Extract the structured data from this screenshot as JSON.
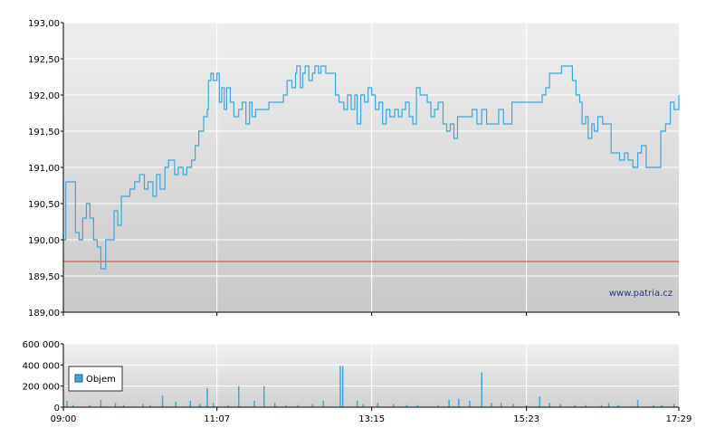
{
  "chart_data": [
    {
      "type": "line",
      "ylim": [
        189.0,
        193.0
      ],
      "yticks": [
        "193,00",
        "192,50",
        "192,00",
        "191,50",
        "191,00",
        "190,50",
        "190,00",
        "189,50",
        "189,00"
      ],
      "ytick_values": [
        193.0,
        192.5,
        192.0,
        191.5,
        191.0,
        190.5,
        190.0,
        189.5,
        189.0
      ],
      "reference_value": 189.7,
      "watermark": "www.patria.cz",
      "grid": true,
      "price_points": [
        [
          "09:00",
          190.0
        ],
        [
          "09:02",
          190.8
        ],
        [
          "09:08",
          190.8
        ],
        [
          "09:10",
          190.1
        ],
        [
          "09:13",
          190.0
        ],
        [
          "09:16",
          190.3
        ],
        [
          "09:19",
          190.5
        ],
        [
          "09:22",
          190.3
        ],
        [
          "09:25",
          190.0
        ],
        [
          "09:28",
          189.9
        ],
        [
          "09:31",
          189.6
        ],
        [
          "09:35",
          190.0
        ],
        [
          "09:40",
          190.0
        ],
        [
          "09:42",
          190.4
        ],
        [
          "09:45",
          190.2
        ],
        [
          "09:48",
          190.6
        ],
        [
          "09:52",
          190.6
        ],
        [
          "09:55",
          190.7
        ],
        [
          "09:59",
          190.8
        ],
        [
          "10:03",
          190.9
        ],
        [
          "10:07",
          190.7
        ],
        [
          "10:10",
          190.8
        ],
        [
          "10:14",
          190.6
        ],
        [
          "10:17",
          190.9
        ],
        [
          "10:20",
          190.7
        ],
        [
          "10:24",
          191.0
        ],
        [
          "10:27",
          191.1
        ],
        [
          "10:32",
          190.9
        ],
        [
          "10:35",
          191.0
        ],
        [
          "10:39",
          190.9
        ],
        [
          "10:42",
          191.0
        ],
        [
          "10:46",
          191.1
        ],
        [
          "10:49",
          191.3
        ],
        [
          "10:52",
          191.5
        ],
        [
          "10:56",
          191.7
        ],
        [
          "10:59",
          191.8
        ],
        [
          "11:00",
          192.2
        ],
        [
          "11:02",
          192.3
        ],
        [
          "11:04",
          192.2
        ],
        [
          "11:07",
          192.3
        ],
        [
          "11:09",
          191.9
        ],
        [
          "11:11",
          192.1
        ],
        [
          "11:13",
          191.8
        ],
        [
          "11:15",
          192.1
        ],
        [
          "11:18",
          191.9
        ],
        [
          "11:21",
          191.7
        ],
        [
          "11:25",
          191.8
        ],
        [
          "11:28",
          191.9
        ],
        [
          "11:31",
          191.6
        ],
        [
          "11:34",
          191.9
        ],
        [
          "11:36",
          191.7
        ],
        [
          "11:39",
          191.8
        ],
        [
          "11:42",
          191.8
        ],
        [
          "11:46",
          191.8
        ],
        [
          "11:50",
          191.9
        ],
        [
          "11:55",
          191.9
        ],
        [
          "11:59",
          191.9
        ],
        [
          "12:02",
          192.0
        ],
        [
          "12:05",
          192.2
        ],
        [
          "12:07",
          192.2
        ],
        [
          "12:09",
          192.1
        ],
        [
          "12:12",
          192.3
        ],
        [
          "12:13",
          192.4
        ],
        [
          "12:16",
          192.1
        ],
        [
          "12:18",
          192.3
        ],
        [
          "12:20",
          192.4
        ],
        [
          "12:23",
          192.2
        ],
        [
          "12:26",
          192.3
        ],
        [
          "12:28",
          192.4
        ],
        [
          "12:31",
          192.3
        ],
        [
          "12:33",
          192.4
        ],
        [
          "12:37",
          192.3
        ],
        [
          "12:42",
          192.3
        ],
        [
          "12:45",
          192.0
        ],
        [
          "12:48",
          191.9
        ],
        [
          "12:52",
          191.8
        ],
        [
          "12:55",
          192.0
        ],
        [
          "12:58",
          191.8
        ],
        [
          "13:01",
          192.0
        ],
        [
          "13:03",
          191.6
        ],
        [
          "13:06",
          192.0
        ],
        [
          "13:09",
          191.9
        ],
        [
          "13:12",
          192.1
        ],
        [
          "13:15",
          192.0
        ],
        [
          "13:18",
          191.8
        ],
        [
          "13:21",
          191.9
        ],
        [
          "13:24",
          191.6
        ],
        [
          "13:27",
          191.8
        ],
        [
          "13:30",
          191.7
        ],
        [
          "13:34",
          191.8
        ],
        [
          "13:37",
          191.7
        ],
        [
          "13:40",
          191.8
        ],
        [
          "13:43",
          191.9
        ],
        [
          "13:46",
          191.7
        ],
        [
          "13:49",
          191.6
        ],
        [
          "13:52",
          192.1
        ],
        [
          "13:55",
          192.0
        ],
        [
          "13:58",
          192.0
        ],
        [
          "14:01",
          191.9
        ],
        [
          "14:04",
          191.7
        ],
        [
          "14:07",
          191.8
        ],
        [
          "14:10",
          191.9
        ],
        [
          "14:14",
          191.6
        ],
        [
          "14:17",
          191.5
        ],
        [
          "14:20",
          191.6
        ],
        [
          "14:23",
          191.4
        ],
        [
          "14:26",
          191.7
        ],
        [
          "14:30",
          191.7
        ],
        [
          "14:35",
          191.7
        ],
        [
          "14:38",
          191.8
        ],
        [
          "14:42",
          191.6
        ],
        [
          "14:46",
          191.8
        ],
        [
          "14:50",
          191.6
        ],
        [
          "14:55",
          191.6
        ],
        [
          "15:00",
          191.8
        ],
        [
          "15:04",
          191.6
        ],
        [
          "15:08",
          191.6
        ],
        [
          "15:11",
          191.9
        ],
        [
          "15:14",
          191.9
        ],
        [
          "15:17",
          191.9
        ],
        [
          "15:20",
          191.9
        ],
        [
          "15:23",
          191.9
        ],
        [
          "15:26",
          191.9
        ],
        [
          "15:29",
          191.9
        ],
        [
          "15:33",
          191.9
        ],
        [
          "15:36",
          192.0
        ],
        [
          "15:39",
          192.1
        ],
        [
          "15:42",
          192.3
        ],
        [
          "15:46",
          192.3
        ],
        [
          "15:49",
          192.3
        ],
        [
          "15:52",
          192.4
        ],
        [
          "15:55",
          192.4
        ],
        [
          "15:58",
          192.4
        ],
        [
          "16:01",
          192.2
        ],
        [
          "16:04",
          192.0
        ],
        [
          "16:07",
          191.9
        ],
        [
          "16:09",
          191.6
        ],
        [
          "16:12",
          191.7
        ],
        [
          "16:14",
          191.4
        ],
        [
          "16:17",
          191.6
        ],
        [
          "16:19",
          191.5
        ],
        [
          "16:22",
          191.7
        ],
        [
          "16:26",
          191.6
        ],
        [
          "16:30",
          191.6
        ],
        [
          "16:33",
          191.2
        ],
        [
          "16:37",
          191.2
        ],
        [
          "16:40",
          191.1
        ],
        [
          "16:44",
          191.2
        ],
        [
          "16:47",
          191.1
        ],
        [
          "16:51",
          191.0
        ],
        [
          "16:55",
          191.2
        ],
        [
          "16:58",
          191.3
        ],
        [
          "17:02",
          191.0
        ],
        [
          "17:05",
          191.0
        ],
        [
          "17:10",
          191.0
        ],
        [
          "17:14",
          191.5
        ],
        [
          "17:18",
          191.6
        ],
        [
          "17:22",
          191.9
        ],
        [
          "17:25",
          191.8
        ],
        [
          "17:29",
          192.0
        ]
      ]
    },
    {
      "type": "bar",
      "ylim": [
        0,
        600000
      ],
      "yticks": [
        "600 000",
        "400 000",
        "200 000",
        "0"
      ],
      "ytick_values": [
        600000,
        400000,
        200000,
        0
      ],
      "xticks": [
        "09:00",
        "11:07",
        "13:15",
        "15:23",
        "17:29"
      ],
      "legend_label": "Objem",
      "legend_position": "top-left",
      "grid": true,
      "volume_bars": [
        [
          "09:03",
          60000
        ],
        [
          "09:08",
          20000
        ],
        [
          "09:22",
          20000
        ],
        [
          "09:31",
          70000
        ],
        [
          "09:43",
          40000
        ],
        [
          "09:50",
          20000
        ],
        [
          "10:06",
          30000
        ],
        [
          "10:12",
          20000
        ],
        [
          "10:22",
          110000
        ],
        [
          "10:33",
          50000
        ],
        [
          "10:45",
          60000
        ],
        [
          "10:53",
          30000
        ],
        [
          "10:59",
          180000
        ],
        [
          "11:04",
          40000
        ],
        [
          "11:16",
          20000
        ],
        [
          "11:25",
          200000
        ],
        [
          "11:38",
          60000
        ],
        [
          "11:46",
          200000
        ],
        [
          "11:55",
          40000
        ],
        [
          "12:04",
          20000
        ],
        [
          "12:14",
          20000
        ],
        [
          "12:26",
          30000
        ],
        [
          "12:35",
          60000
        ],
        [
          "12:49",
          390000
        ],
        [
          "12:51",
          390000
        ],
        [
          "13:03",
          60000
        ],
        [
          "13:08",
          30000
        ],
        [
          "13:20",
          40000
        ],
        [
          "13:33",
          30000
        ],
        [
          "13:44",
          20000
        ],
        [
          "13:53",
          20000
        ],
        [
          "14:10",
          20000
        ],
        [
          "14:19",
          70000
        ],
        [
          "14:27",
          80000
        ],
        [
          "14:36",
          60000
        ],
        [
          "14:46",
          330000
        ],
        [
          "14:54",
          40000
        ],
        [
          "15:02",
          40000
        ],
        [
          "15:12",
          30000
        ],
        [
          "15:23",
          20000
        ],
        [
          "15:34",
          100000
        ],
        [
          "15:42",
          40000
        ],
        [
          "15:51",
          30000
        ],
        [
          "16:03",
          20000
        ],
        [
          "16:12",
          20000
        ],
        [
          "16:25",
          20000
        ],
        [
          "16:31",
          40000
        ],
        [
          "16:39",
          20000
        ],
        [
          "16:55",
          70000
        ],
        [
          "17:08",
          20000
        ],
        [
          "17:15",
          20000
        ],
        [
          "17:25",
          30000
        ]
      ]
    }
  ]
}
